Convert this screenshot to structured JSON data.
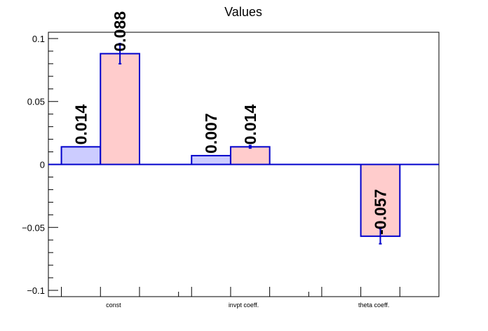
{
  "chart_data": {
    "type": "bar",
    "title": "Values",
    "xlabel": "",
    "ylabel": "",
    "categories": [
      "const",
      "invpt coeff.",
      "theta coeff."
    ],
    "ylim": [
      -0.105,
      0.105
    ],
    "yticks": [
      0.1,
      0.05,
      0,
      -0.05,
      -0.1
    ],
    "ytick_labels": [
      "0.1",
      "0.05",
      "0",
      "−0.05",
      "−0.1"
    ],
    "grid": false,
    "legend": "none",
    "series": [
      {
        "values": [
          0.014,
          0.007,
          null
        ],
        "labels": [
          "0.014",
          "0.007",
          ""
        ],
        "errors": [
          null,
          null,
          null
        ],
        "fill": "#ccccff",
        "stroke": "#0000cc"
      },
      {
        "values": [
          0.088,
          0.014,
          -0.057
        ],
        "labels": [
          "0.088",
          "0.014",
          "-0.057"
        ],
        "errors": [
          0.008,
          0.001,
          0.006
        ],
        "fill": "#ffcccc",
        "stroke": "#0000cc"
      }
    ],
    "axis_color": "#000000",
    "zero_line_color": "#0000cc"
  }
}
